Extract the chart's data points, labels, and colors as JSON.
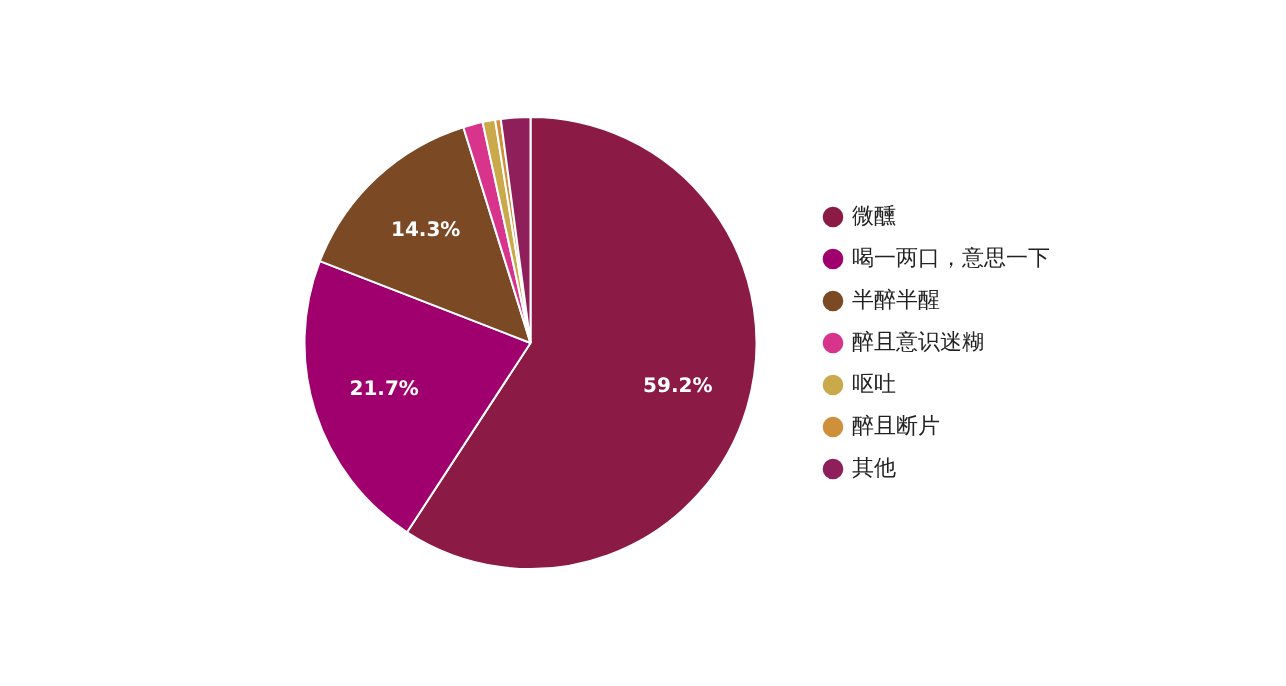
{
  "chart_data": {
    "type": "pie",
    "categories": [
      "微醺",
      "喝一两口，意思一下",
      "半醉半醒",
      "醉且意识迷糊",
      "呕吐",
      "醉且断片",
      "其他"
    ],
    "values": [
      59.2,
      21.7,
      14.3,
      1.4,
      0.9,
      0.4,
      2.1
    ],
    "value_labels": [
      "59.2%",
      "21.7%",
      "14.3%",
      null,
      null,
      null,
      null
    ],
    "colors": [
      "#8b1a45",
      "#a0006e",
      "#7b4a25",
      "#d9348c",
      "#c9a94a",
      "#d08f3a",
      "#8f1f5a"
    ],
    "legend": "right"
  }
}
